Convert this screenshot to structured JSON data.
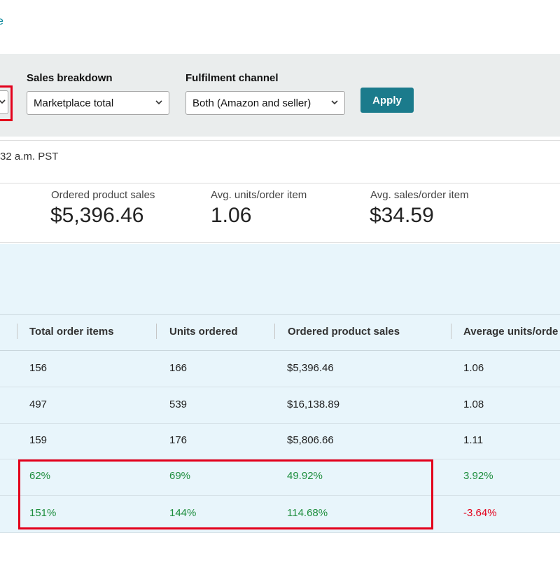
{
  "top_link": "e",
  "filters": {
    "sales_breakdown_label": "Sales breakdown",
    "sales_breakdown_value": "Marketplace total",
    "fulfilment_label": "Fulfilment channel",
    "fulfilment_value": "Both (Amazon and seller)",
    "apply_label": "Apply"
  },
  "updated_text": "32 a.m. PST",
  "metrics": [
    {
      "label": "Ordered product sales",
      "value": "$5,396.46"
    },
    {
      "label": "Avg. units/order item",
      "value": "1.06"
    },
    {
      "label": "Avg. sales/order item",
      "value": "$34.59"
    }
  ],
  "table": {
    "headers": [
      "Total order items",
      "Units ordered",
      "Ordered product sales",
      "Average units/orde"
    ],
    "rows": [
      [
        "156",
        "166",
        "$5,396.46",
        "1.06"
      ],
      [
        "497",
        "539",
        "$16,138.89",
        "1.08"
      ],
      [
        "159",
        "176",
        "$5,806.66",
        "1.11"
      ],
      [
        "62%",
        "69%",
        "49.92%",
        "3.92%"
      ],
      [
        "151%",
        "144%",
        "114.68%",
        "-3.64%"
      ]
    ]
  },
  "colors": {
    "accent": "#1b7b8c",
    "positive": "#1e8e3e",
    "negative": "#e3001b",
    "highlight_box": "#e3001b"
  },
  "icons": [
    "chevron-down-icon"
  ]
}
